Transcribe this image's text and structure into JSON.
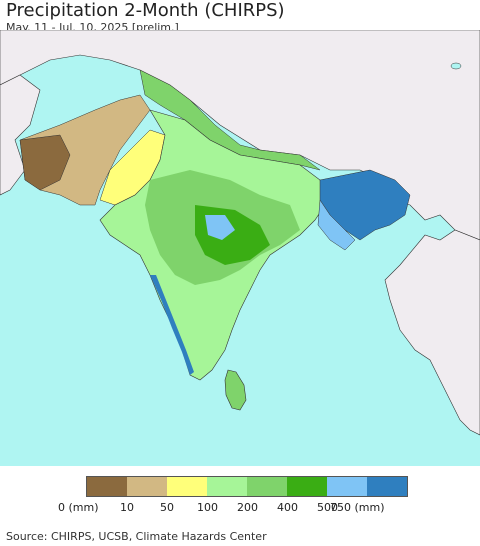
{
  "header": {
    "title": "Precipitation 2-Month (CHIRPS)",
    "subtitle": "May. 11 - Jul. 10, 2025 [prelim.]"
  },
  "legend": {
    "labels": [
      "0 (mm)",
      "10",
      "50",
      "100",
      "200",
      "400",
      "500",
      "750 (mm)"
    ],
    "colors": [
      "#8b6a3e",
      "#d2b883",
      "#ffff7a",
      "#a6f598",
      "#7fd36b",
      "#3aad14",
      "#7fc4f5",
      "#2f7fbf"
    ]
  },
  "footer": {
    "source": "Source: CHIRPS, UCSB, Climate Hazards Center"
  },
  "map_colors": {
    "ocean": "#aff5f2",
    "land_outside": "#f0ecf0",
    "border": "#222222"
  }
}
